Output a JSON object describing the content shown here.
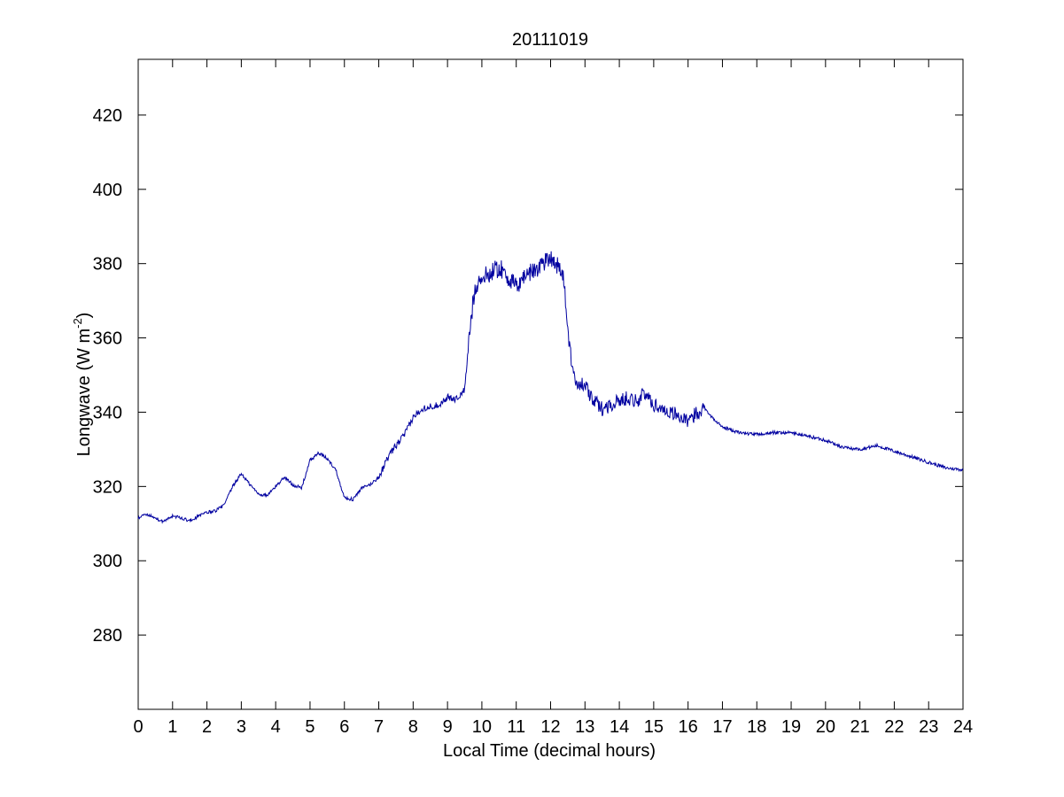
{
  "chart_data": {
    "type": "line",
    "title": "20111019",
    "xlabel": "Local Time (decimal hours)",
    "ylabel": {
      "main": "Longwave (W m",
      "superscript": "-2",
      "close": ")"
    },
    "xlim": [
      0,
      24
    ],
    "ylim": [
      260,
      435
    ],
    "xticks": [
      "0",
      "1",
      "2",
      "3",
      "4",
      "5",
      "6",
      "7",
      "8",
      "9",
      "10",
      "11",
      "12",
      "13",
      "14",
      "15",
      "16",
      "17",
      "18",
      "19",
      "20",
      "21",
      "22",
      "23",
      "24"
    ],
    "yticks": [
      "280",
      "300",
      "320",
      "340",
      "360",
      "380",
      "400",
      "420"
    ],
    "grid": false,
    "line_color": "#0000a0",
    "series": [
      {
        "x": [
          0,
          0.25,
          0.5,
          0.75,
          1,
          1.25,
          1.5,
          1.75,
          2,
          2.25,
          2.5,
          2.75,
          3,
          3.25,
          3.5,
          3.75,
          4,
          4.25,
          4.5,
          4.75,
          5,
          5.25,
          5.5,
          5.75,
          6,
          6.25,
          6.5,
          6.75,
          7,
          7.25,
          7.5,
          7.75,
          8,
          8.25,
          8.5,
          8.75,
          9,
          9.25,
          9.5,
          9.65,
          9.8,
          10,
          10.25,
          10.5,
          10.75,
          11,
          11.25,
          11.5,
          11.75,
          12,
          12.25,
          12.4,
          12.5,
          12.65,
          12.8,
          13,
          13.25,
          13.5,
          13.75,
          14,
          14.25,
          14.5,
          14.75,
          15,
          15.25,
          15.5,
          15.75,
          16,
          16.25,
          16.5,
          16.75,
          17,
          17.5,
          18,
          18.5,
          19,
          19.5,
          20,
          20.5,
          21,
          21.5,
          22,
          22.5,
          23,
          23.5,
          24
        ],
        "values": [
          311.5,
          312.5,
          311.5,
          310.5,
          312,
          311.5,
          310.8,
          312,
          313,
          313.5,
          315,
          320,
          323.5,
          320.5,
          318,
          317.5,
          320,
          322.5,
          320.5,
          319.5,
          327,
          329,
          327.5,
          324.5,
          317,
          316.5,
          319.5,
          320.5,
          322.5,
          327.5,
          331,
          334,
          338.5,
          341,
          341.5,
          342,
          344,
          343.5,
          346,
          362,
          374,
          376,
          377.5,
          379,
          376.5,
          373.5,
          377,
          378,
          380,
          382,
          379,
          375,
          362,
          350,
          348,
          347,
          343,
          341,
          342,
          343,
          344,
          343,
          345,
          342,
          341,
          340,
          339,
          337,
          340,
          341,
          338,
          336,
          334.5,
          334,
          334.5,
          334.5,
          333.5,
          332.5,
          330.5,
          330,
          331,
          329.5,
          328,
          326.5,
          325,
          324.5
        ]
      }
    ]
  }
}
